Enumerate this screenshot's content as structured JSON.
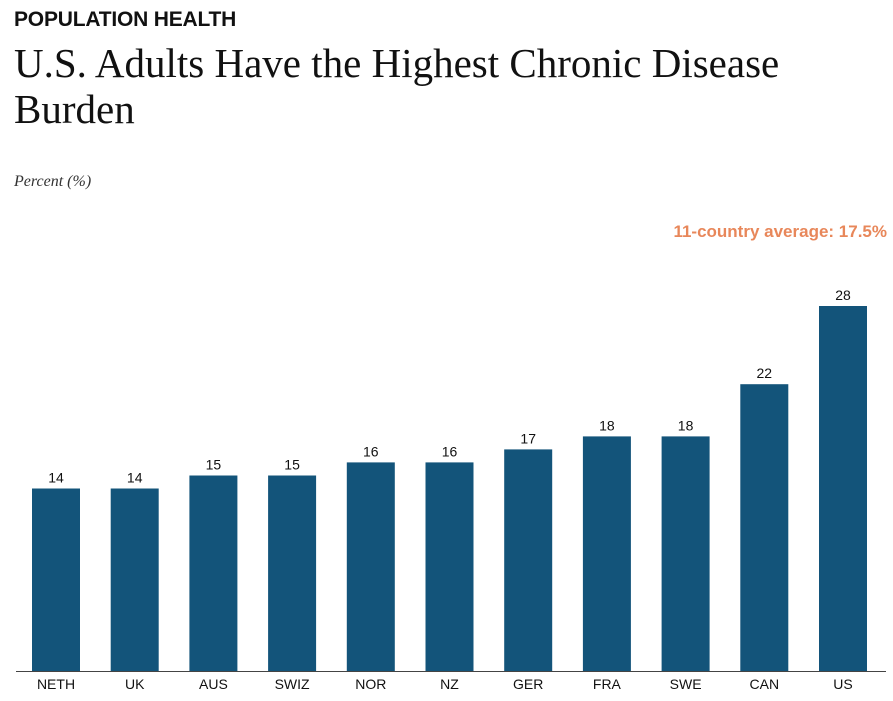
{
  "header": {
    "eyebrow": "POPULATION HEALTH",
    "title": "U.S. Adults Have the Highest Chronic Disease Burden",
    "units": "Percent (%)"
  },
  "annotation": {
    "average_label": "11-country average: 17.5%",
    "average_color": "#e8875a"
  },
  "colors": {
    "bar": "#13547a"
  },
  "chart_data": {
    "type": "bar",
    "title": "U.S. Adults Have the Highest Chronic Disease Burden",
    "ylabel": "Percent (%)",
    "categories": [
      "NETH",
      "UK",
      "AUS",
      "SWIZ",
      "NOR",
      "NZ",
      "GER",
      "FRA",
      "SWE",
      "CAN",
      "US"
    ],
    "values": [
      14,
      14,
      15,
      15,
      16,
      16,
      17,
      18,
      18,
      22,
      28
    ],
    "ylim": [
      0,
      28
    ],
    "grid": false,
    "data_labels": true,
    "average": 17.5
  }
}
